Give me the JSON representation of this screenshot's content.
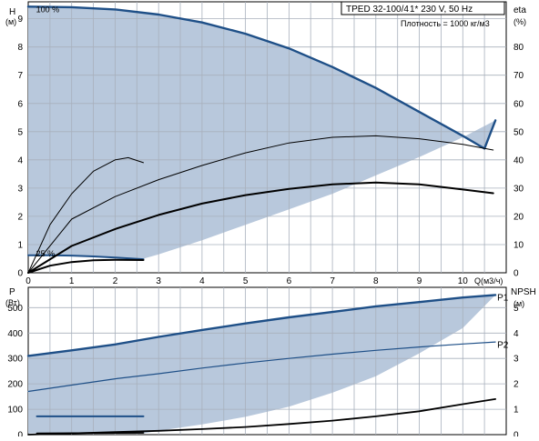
{
  "header": {
    "model": "TPED 32-100/4",
    "power": "1* 230 V, 50 Hz",
    "density": "Плотность = 1000 кг/м3"
  },
  "colors": {
    "region": "#b8c8dc",
    "grid": "#a8b0bc",
    "curve_blue": "#1e4f87",
    "curve_black": "#000000"
  },
  "chart_data": [
    {
      "type": "line",
      "name": "head-efficiency",
      "x_unit": "Q(м3/ч)",
      "xlim": [
        0,
        11
      ],
      "x_ticks": [
        0,
        1,
        2,
        3,
        4,
        5,
        6,
        7,
        8,
        9,
        10
      ],
      "ylabel_left": "H",
      "ylabel_left_unit": "(м)",
      "ylim_left": [
        0,
        9.6
      ],
      "y_ticks_left": [
        0,
        1,
        2,
        3,
        4,
        5,
        6,
        7,
        8,
        9
      ],
      "ylabel_right": "eta",
      "ylabel_right_unit": "(%)",
      "ylim_right": [
        0,
        96
      ],
      "y_ticks_right": [
        0,
        10,
        20,
        30,
        40,
        50,
        60,
        70,
        80
      ],
      "grid": true,
      "annotations": [
        {
          "text": "100 %",
          "x": 0.18,
          "y": 9.35
        },
        {
          "text": "25 %",
          "x": 0.18,
          "y": 0.7
        }
      ],
      "region": {
        "upper": [
          [
            0,
            9.43
          ],
          [
            1,
            9.41
          ],
          [
            2,
            9.33
          ],
          [
            3,
            9.15
          ],
          [
            4,
            8.87
          ],
          [
            5,
            8.47
          ],
          [
            6,
            7.95
          ],
          [
            7,
            7.29
          ],
          [
            8,
            6.55
          ],
          [
            9,
            5.7
          ],
          [
            10,
            4.85
          ],
          [
            10.5,
            4.4
          ],
          [
            10.75,
            5.4
          ]
        ],
        "lower": [
          [
            10.75,
            5.4
          ],
          [
            10,
            4.8
          ],
          [
            9,
            4.1
          ],
          [
            8,
            3.45
          ],
          [
            7,
            2.8
          ],
          [
            6,
            2.25
          ],
          [
            5,
            1.7
          ],
          [
            4,
            1.15
          ],
          [
            3,
            0.65
          ],
          [
            2.65,
            0.5
          ],
          [
            2,
            0.56
          ],
          [
            1,
            0.62
          ],
          [
            0,
            0.62
          ]
        ]
      },
      "series": [
        {
          "name": "",
          "axis": "left",
          "color": "blue",
          "width": 2.4,
          "points": [
            [
              0,
              9.43
            ],
            [
              1,
              9.41
            ],
            [
              2,
              9.33
            ],
            [
              3,
              9.15
            ],
            [
              4,
              8.87
            ],
            [
              5,
              8.47
            ],
            [
              6,
              7.95
            ],
            [
              7,
              7.29
            ],
            [
              8,
              6.55
            ],
            [
              9,
              5.7
            ],
            [
              10,
              4.85
            ],
            [
              10.5,
              4.4
            ],
            [
              10.75,
              5.4
            ]
          ]
        },
        {
          "name": "",
          "axis": "left",
          "color": "blue",
          "width": 2,
          "points": [
            [
              0,
              0.62
            ],
            [
              0.5,
              0.62
            ],
            [
              1,
              0.61
            ],
            [
              1.5,
              0.58
            ],
            [
              2,
              0.54
            ],
            [
              2.65,
              0.48
            ]
          ]
        },
        {
          "name": "",
          "axis": "left",
          "color": "black",
          "width": 2,
          "points": [
            [
              0,
              0
            ],
            [
              1,
              0.95
            ],
            [
              2,
              1.55
            ],
            [
              3,
              2.05
            ],
            [
              4,
              2.45
            ],
            [
              5,
              2.75
            ],
            [
              6,
              2.97
            ],
            [
              7,
              3.13
            ],
            [
              8,
              3.2
            ],
            [
              9,
              3.13
            ],
            [
              10,
              2.95
            ],
            [
              10.7,
              2.82
            ]
          ]
        },
        {
          "name": "",
          "axis": "left",
          "color": "black",
          "width": 2,
          "points": [
            [
              0,
              0
            ],
            [
              0.5,
              0.25
            ],
            [
              1,
              0.38
            ],
            [
              1.5,
              0.44
            ],
            [
              2,
              0.46
            ],
            [
              2.65,
              0.45
            ]
          ]
        },
        {
          "name": "",
          "axis": "right",
          "color": "black",
          "width": 1,
          "points": [
            [
              0,
              0
            ],
            [
              1,
              19
            ],
            [
              2,
              27
            ],
            [
              3,
              33
            ],
            [
              4,
              38
            ],
            [
              5,
              42.5
            ],
            [
              6,
              46
            ],
            [
              7,
              48
            ],
            [
              8,
              48.5
            ],
            [
              9,
              47.5
            ],
            [
              10,
              45.5
            ],
            [
              10.7,
              43.5
            ]
          ]
        },
        {
          "name": "",
          "axis": "right",
          "color": "black",
          "width": 1,
          "points": [
            [
              0,
              0
            ],
            [
              0.5,
              17
            ],
            [
              1,
              28
            ],
            [
              1.5,
              36
            ],
            [
              2,
              40
            ],
            [
              2.3,
              40.8
            ],
            [
              2.65,
              39
            ]
          ]
        }
      ]
    },
    {
      "type": "line",
      "name": "power-npsh",
      "xlim": [
        0,
        11
      ],
      "ylabel_left": "P",
      "ylabel_left_unit": "(Вт)",
      "ylim_left": [
        0,
        580
      ],
      "y_ticks_left": [
        0,
        100,
        200,
        300,
        400,
        500
      ],
      "ylabel_right": "NPSH",
      "ylabel_right_unit": "(м)",
      "ylim_right": [
        0,
        5.8
      ],
      "y_ticks_right": [
        0,
        1,
        2,
        3,
        4,
        5
      ],
      "grid": true,
      "labels": [
        {
          "text": "P1",
          "x": 10.75,
          "y": 540
        },
        {
          "text": "P2",
          "x": 10.75,
          "y": 355
        }
      ],
      "region": {
        "upper": [
          [
            0,
            310
          ],
          [
            1,
            332
          ],
          [
            2,
            355
          ],
          [
            3,
            385
          ],
          [
            4,
            412
          ],
          [
            5,
            438
          ],
          [
            6,
            462
          ],
          [
            7,
            483
          ],
          [
            8,
            505
          ],
          [
            9,
            522
          ],
          [
            10,
            540
          ],
          [
            10.75,
            550
          ]
        ],
        "lower": [
          [
            10.75,
            550
          ],
          [
            10,
            420
          ],
          [
            9,
            320
          ],
          [
            8,
            230
          ],
          [
            7,
            165
          ],
          [
            6,
            110
          ],
          [
            5,
            70
          ],
          [
            4,
            40
          ],
          [
            3,
            15
          ],
          [
            2.65,
            5
          ],
          [
            0,
            5
          ]
        ]
      },
      "series": [
        {
          "name": "P1",
          "axis": "left",
          "color": "blue",
          "width": 2.4,
          "points": [
            [
              0,
              310
            ],
            [
              1,
              332
            ],
            [
              2,
              355
            ],
            [
              3,
              385
            ],
            [
              4,
              412
            ],
            [
              5,
              438
            ],
            [
              6,
              462
            ],
            [
              7,
              483
            ],
            [
              8,
              505
            ],
            [
              9,
              522
            ],
            [
              10,
              540
            ],
            [
              10.75,
              550
            ]
          ]
        },
        {
          "name": "P2",
          "axis": "left",
          "color": "blue",
          "width": 1.2,
          "points": [
            [
              0,
              170
            ],
            [
              1,
              195
            ],
            [
              2,
              220
            ],
            [
              3,
              240
            ],
            [
              4,
              262
            ],
            [
              5,
              282
            ],
            [
              6,
              300
            ],
            [
              7,
              317
            ],
            [
              8,
              332
            ],
            [
              9,
              345
            ],
            [
              10,
              357
            ],
            [
              10.75,
              365
            ]
          ]
        },
        {
          "name": "",
          "axis": "left",
          "color": "blue",
          "width": 2,
          "points": [
            [
              0.2,
              72
            ],
            [
              2.65,
              72
            ]
          ]
        },
        {
          "name": "",
          "axis": "right",
          "color": "black",
          "width": 1.8,
          "points": [
            [
              0,
              0
            ],
            [
              1,
              0.05
            ],
            [
              2,
              0.1
            ],
            [
              3,
              0.15
            ],
            [
              4,
              0.22
            ],
            [
              5,
              0.3
            ],
            [
              6,
              0.42
            ],
            [
              7,
              0.55
            ],
            [
              8,
              0.72
            ],
            [
              9,
              0.92
            ],
            [
              10,
              1.2
            ],
            [
              10.75,
              1.4
            ]
          ]
        },
        {
          "name": "",
          "axis": "right",
          "color": "black",
          "width": 1.8,
          "points": [
            [
              0.2,
              0.05
            ],
            [
              2.65,
              0.07
            ]
          ]
        }
      ]
    }
  ]
}
